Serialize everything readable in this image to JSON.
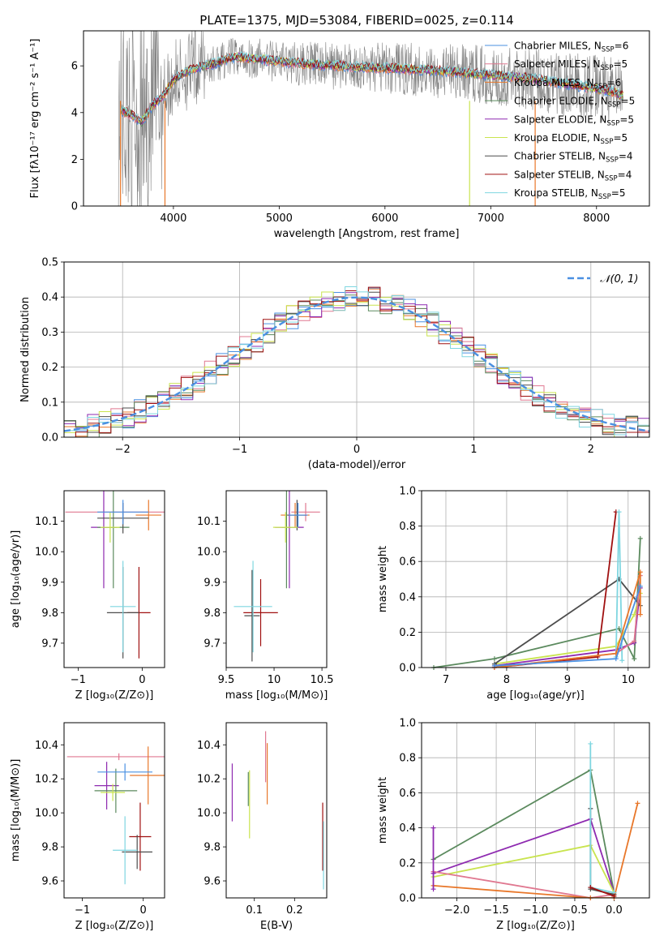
{
  "figure_title": "PLATE=1375, MJD=53084, FIBERID=0025, z=0.114",
  "palette": [
    "#4a90e2",
    "#e07890",
    "#e8772a",
    "#5b8a5e",
    "#8e2ab0",
    "#c9e44f",
    "#4d4d4d",
    "#a01010",
    "#7fd6e0"
  ],
  "chart_data": [
    {
      "id": "spectrum",
      "type": "line",
      "xlabel": "wavelength [Angstrom, rest frame]",
      "ylabel": "Flux [fλ10⁻¹⁷ erg cm⁻² s⁻¹ A⁻¹]",
      "xlim": [
        3150,
        8500
      ],
      "ylim": [
        0,
        7.5
      ],
      "xticks": [
        4000,
        5000,
        6000,
        7000,
        8000
      ],
      "yticks": [
        0,
        2,
        4,
        6
      ],
      "grid": false,
      "legend_placement": "right",
      "legend": [
        {
          "label": "Chabrier MILES, N",
          "sub": "SSP",
          "n": "=6",
          "color": "#4a90e2"
        },
        {
          "label": "Salpeter MILES, N",
          "sub": "SSP",
          "n": "=5",
          "color": "#e07890"
        },
        {
          "label": "Kroupa MILES, N",
          "sub": "SSP",
          "n": "=6",
          "color": "#e8772a"
        },
        {
          "label": "Chabrier ELODIE, N",
          "sub": "SSP",
          "n": "=5",
          "color": "#5b8a5e"
        },
        {
          "label": "Salpeter ELODIE, N",
          "sub": "SSP",
          "n": "=5",
          "color": "#8e2ab0"
        },
        {
          "label": "Kroupa ELODIE, N",
          "sub": "SSP",
          "n": "=5",
          "color": "#c9e44f"
        },
        {
          "label": "Chabrier STELIB, N",
          "sub": "SSP",
          "n": "=4",
          "color": "#4d4d4d"
        },
        {
          "label": "Salpeter STELIB, N",
          "sub": "SSP",
          "n": "=4",
          "color": "#a01010"
        },
        {
          "label": "Kroupa STELIB, N",
          "sub": "SSP",
          "n": "=5",
          "color": "#7fd6e0"
        }
      ],
      "continuum": {
        "x": [
          3500,
          3600,
          3700,
          3800,
          3900,
          4000,
          4100,
          4200,
          4300,
          4400,
          4500,
          4600,
          4800,
          5000,
          5200,
          5500,
          6000,
          6500,
          7000,
          7300,
          7600,
          7900,
          8150,
          8250
        ],
        "y": [
          4.1,
          3.9,
          3.6,
          4.3,
          4.7,
          5.4,
          5.7,
          5.9,
          6.0,
          6.1,
          6.3,
          6.4,
          6.3,
          6.2,
          6.1,
          6.0,
          5.9,
          5.8,
          5.6,
          5.5,
          5.3,
          5.1,
          4.9,
          4.7
        ]
      }
    },
    {
      "id": "residuals",
      "type": "line",
      "xlabel": "(data-model)/error",
      "ylabel": "Normed distribution",
      "xlim": [
        -2.5,
        2.5
      ],
      "ylim": [
        0,
        0.5
      ],
      "xticks": [
        -2,
        -1,
        0,
        1,
        2
      ],
      "ytick_labels": [
        "0.0",
        "0.1",
        "0.2",
        "0.3",
        "0.4",
        "0.5"
      ],
      "grid": true,
      "legend_placement": "top-right",
      "normal_label": "𝒩(0, 1)",
      "normal_color": "#4a90e2"
    },
    {
      "id": "age_vs_Z",
      "type": "scatter",
      "xlabel": "Z [log₁₀(Z/Z⊙)]",
      "ylabel": "age [log₁₀(age/yr)]",
      "xlim": [
        -1.22,
        0.35
      ],
      "ylim": [
        9.62,
        10.2
      ],
      "xticks": [
        -1,
        0
      ],
      "yticks": [
        9.7,
        9.8,
        9.9,
        10.0,
        10.1
      ],
      "points": [
        {
          "x": -0.3,
          "y": 10.13,
          "xerr": 0.9,
          "yerr": 0.03,
          "color": "#e07890"
        },
        {
          "x": 0.1,
          "y": 10.12,
          "xerr": 0.2,
          "yerr": 0.05,
          "color": "#e8772a"
        },
        {
          "x": -0.6,
          "y": 10.08,
          "xerr": 0.2,
          "yerr": 0.2,
          "color": "#8e2ab0"
        },
        {
          "x": -0.45,
          "y": 10.08,
          "xerr": 0.25,
          "yerr": 0.2,
          "color": "#5b8a5e"
        },
        {
          "x": -0.3,
          "y": 10.11,
          "xerr": 0.4,
          "yerr": 0.05,
          "color": "#4d4d4d"
        },
        {
          "x": -0.5,
          "y": 10.08,
          "xerr": 0.15,
          "yerr": 0.05,
          "color": "#c9e44f"
        },
        {
          "x": -0.3,
          "y": 10.13,
          "xerr": 0.4,
          "yerr": 0.04,
          "color": "#4a90e2"
        },
        {
          "x": -0.05,
          "y": 9.8,
          "xerr": 0.18,
          "yerr": 0.15,
          "color": "#a01010"
        },
        {
          "x": -0.3,
          "y": 9.8,
          "xerr": 0.25,
          "yerr": 0.15,
          "color": "#4d4d4d"
        },
        {
          "x": -0.3,
          "y": 9.82,
          "xerr": 0.2,
          "yerr": 0.15,
          "color": "#7fd6e0"
        }
      ]
    },
    {
      "id": "age_vs_mass",
      "type": "scatter",
      "xlabel": "mass [log₁₀(M/M⊙)]",
      "ylabel": "",
      "xlim": [
        9.5,
        10.55
      ],
      "ylim": [
        9.62,
        10.2
      ],
      "xticks": [
        9.5,
        10.0,
        10.5
      ],
      "yticks": [
        9.7,
        9.8,
        9.9,
        10.0,
        10.1
      ],
      "points": [
        {
          "x": 10.33,
          "y": 10.13,
          "xerr": 0.15,
          "yerr": 0.03,
          "color": "#e07890"
        },
        {
          "x": 10.22,
          "y": 10.12,
          "xerr": 0.15,
          "yerr": 0.04,
          "color": "#e8772a"
        },
        {
          "x": 10.16,
          "y": 10.08,
          "xerr": 0.15,
          "yerr": 0.2,
          "color": "#8e2ab0"
        },
        {
          "x": 10.13,
          "y": 10.08,
          "xerr": 0.05,
          "yerr": 0.2,
          "color": "#5b8a5e"
        },
        {
          "x": 10.24,
          "y": 10.12,
          "xerr": 0.1,
          "yerr": 0.05,
          "color": "#4d4d4d"
        },
        {
          "x": 10.12,
          "y": 10.08,
          "xerr": 0.13,
          "yerr": 0.05,
          "color": "#c9e44f"
        },
        {
          "x": 10.25,
          "y": 10.12,
          "xerr": 0.1,
          "yerr": 0.04,
          "color": "#4a90e2"
        },
        {
          "x": 9.86,
          "y": 9.8,
          "xerr": 0.18,
          "yerr": 0.11,
          "color": "#a01010"
        },
        {
          "x": 9.77,
          "y": 9.79,
          "xerr": 0.08,
          "yerr": 0.15,
          "color": "#4d4d4d"
        },
        {
          "x": 9.78,
          "y": 9.82,
          "xerr": 0.2,
          "yerr": 0.15,
          "color": "#7fd6e0"
        }
      ]
    },
    {
      "id": "weight_vs_age",
      "type": "line",
      "xlabel": "age  [log₁₀(age/yr)]",
      "ylabel": "mass weight",
      "xlim": [
        6.6,
        10.35
      ],
      "ylim": [
        0,
        1.0
      ],
      "xticks": [
        7,
        8,
        9,
        10
      ],
      "ytick_labels": [
        "0.0",
        "0.2",
        "0.4",
        "0.6",
        "0.8",
        "1.0"
      ],
      "grid": true,
      "series": [
        {
          "color": "#5b8a5e",
          "x": [
            6.8,
            7.8,
            9.85,
            10.1,
            10.2
          ],
          "y": [
            0.0,
            0.05,
            0.22,
            0.05,
            0.73
          ]
        },
        {
          "color": "#8e2ab0",
          "x": [
            7.8,
            9.8,
            10.1,
            10.2
          ],
          "y": [
            0.01,
            0.1,
            0.14,
            0.45
          ]
        },
        {
          "color": "#c9e44f",
          "x": [
            7.8,
            9.8,
            10.1,
            10.2
          ],
          "y": [
            0.02,
            0.12,
            0.3,
            0.42
          ]
        },
        {
          "color": "#4d4d4d",
          "x": [
            7.8,
            9.85,
            10.2
          ],
          "y": [
            0.02,
            0.5,
            0.35
          ]
        },
        {
          "color": "#a01010",
          "x": [
            7.8,
            9.5,
            9.8
          ],
          "y": [
            0.0,
            0.06,
            0.88
          ]
        },
        {
          "color": "#7fd6e0",
          "x": [
            9.8,
            9.85,
            9.9
          ],
          "y": [
            0.06,
            0.88,
            0.04
          ]
        },
        {
          "color": "#e07890",
          "x": [
            7.8,
            9.8,
            10.1,
            10.2
          ],
          "y": [
            0.0,
            0.08,
            0.15,
            0.52
          ]
        },
        {
          "color": "#e8772a",
          "x": [
            7.8,
            9.8,
            10.2,
            10.2
          ],
          "y": [
            0.0,
            0.08,
            0.54,
            0.3
          ]
        },
        {
          "color": "#4a90e2",
          "x": [
            7.8,
            9.8,
            10.2
          ],
          "y": [
            0.01,
            0.05,
            0.46
          ]
        }
      ]
    },
    {
      "id": "mass_vs_Z",
      "type": "scatter",
      "xlabel": "Z [log₁₀(Z/Z⊙)]",
      "ylabel": "mass [log₁₀(M/M⊙)]",
      "xlim": [
        -1.3,
        0.35
      ],
      "ylim": [
        9.5,
        10.53
      ],
      "xticks": [
        -1,
        0
      ],
      "yticks": [
        9.6,
        9.8,
        10.0,
        10.2,
        10.4
      ],
      "points": [
        {
          "x": -0.4,
          "y": 10.33,
          "xerr": 0.85,
          "yerr": 0.02,
          "color": "#e07890"
        },
        {
          "x": 0.08,
          "y": 10.22,
          "xerr": 0.3,
          "yerr": 0.17,
          "color": "#e8772a"
        },
        {
          "x": -0.6,
          "y": 10.16,
          "xerr": 0.2,
          "yerr": 0.14,
          "color": "#8e2ab0"
        },
        {
          "x": -0.45,
          "y": 10.13,
          "xerr": 0.35,
          "yerr": 0.13,
          "color": "#5b8a5e"
        },
        {
          "x": -0.3,
          "y": 10.24,
          "xerr": 0.45,
          "yerr": 0.05,
          "color": "#4a90e2"
        },
        {
          "x": -0.5,
          "y": 10.12,
          "xerr": 0.2,
          "yerr": 0.05,
          "color": "#c9e44f"
        },
        {
          "x": -0.05,
          "y": 9.86,
          "xerr": 0.18,
          "yerr": 0.2,
          "color": "#a01010"
        },
        {
          "x": -0.1,
          "y": 9.77,
          "xerr": 0.25,
          "yerr": 0.1,
          "color": "#4d4d4d"
        },
        {
          "x": -0.3,
          "y": 9.78,
          "xerr": 0.2,
          "yerr": 0.2,
          "color": "#7fd6e0"
        }
      ]
    },
    {
      "id": "mass_vs_ebv",
      "type": "scatter",
      "xlabel": "E(B-V)",
      "ylabel": "",
      "xlim": [
        0.03,
        0.28
      ],
      "ylim": [
        9.5,
        10.53
      ],
      "xticks": [
        0.1,
        0.2
      ],
      "yticks": [
        9.6,
        9.8,
        10.0,
        10.2,
        10.4
      ],
      "points": [
        {
          "x": 0.045,
          "y": 10.12,
          "yerr": 0.17,
          "color": "#8e2ab0"
        },
        {
          "x": 0.085,
          "y": 10.14,
          "yerr": 0.1,
          "color": "#5b8a5e"
        },
        {
          "x": 0.088,
          "y": 10.05,
          "yerr": 0.2,
          "color": "#c9e44f"
        },
        {
          "x": 0.128,
          "y": 10.33,
          "yerr": 0.15,
          "color": "#e07890"
        },
        {
          "x": 0.132,
          "y": 10.23,
          "yerr": 0.18,
          "color": "#e8772a"
        },
        {
          "x": 0.27,
          "y": 9.86,
          "yerr": 0.2,
          "color": "#a01010"
        },
        {
          "x": 0.272,
          "y": 9.75,
          "yerr": 0.2,
          "color": "#7fd6e0"
        }
      ]
    },
    {
      "id": "weight_vs_Z",
      "type": "line",
      "xlabel": "Z [log₁₀(Z/Z⊙)]",
      "ylabel": "mass weight",
      "xlim": [
        -2.45,
        0.45
      ],
      "ylim": [
        0,
        1.0
      ],
      "xtick_labels": [
        "−2.0",
        "−1.5",
        "−1.0",
        "−0.5",
        "0.0"
      ],
      "xtick_values": [
        -2.0,
        -1.5,
        -1.0,
        -0.5,
        0.0
      ],
      "ytick_labels": [
        "0.0",
        "0.2",
        "0.4",
        "0.6",
        "0.8",
        "1.0"
      ],
      "grid": true,
      "series": [
        {
          "color": "#5b8a5e",
          "x": [
            -2.3,
            -0.3,
            0.0
          ],
          "y": [
            0.22,
            0.73,
            0.03
          ]
        },
        {
          "color": "#8e2ab0",
          "x": [
            -2.3,
            -0.3,
            0.0
          ],
          "y": [
            0.14,
            0.45,
            0.03
          ]
        },
        {
          "color": "#c9e44f",
          "x": [
            -2.3,
            -0.3,
            0.0
          ],
          "y": [
            0.12,
            0.3,
            0.03
          ]
        },
        {
          "color": "#e07890",
          "x": [
            -2.3,
            -0.3,
            0.0
          ],
          "y": [
            0.15,
            0.0,
            0.02
          ]
        },
        {
          "color": "#e8772a",
          "x": [
            -2.3,
            -0.3,
            0.0,
            0.3
          ],
          "y": [
            0.07,
            0.0,
            0.0,
            0.54
          ]
        },
        {
          "color": "#4d4d4d",
          "x": [
            -0.3,
            -0.3,
            0.0
          ],
          "y": [
            0.51,
            0.05,
            0.02
          ]
        },
        {
          "color": "#7fd6e0",
          "x": [
            -0.3,
            -0.3,
            0.0
          ],
          "y": [
            0.88,
            0.06,
            0.03
          ]
        },
        {
          "color": "#8e2ab0",
          "x": [
            -2.3,
            -2.3
          ],
          "y": [
            0.05,
            0.4
          ]
        },
        {
          "color": "#a01010",
          "x": [
            -0.3,
            0.0
          ],
          "y": [
            0.06,
            0.01
          ]
        }
      ]
    }
  ]
}
